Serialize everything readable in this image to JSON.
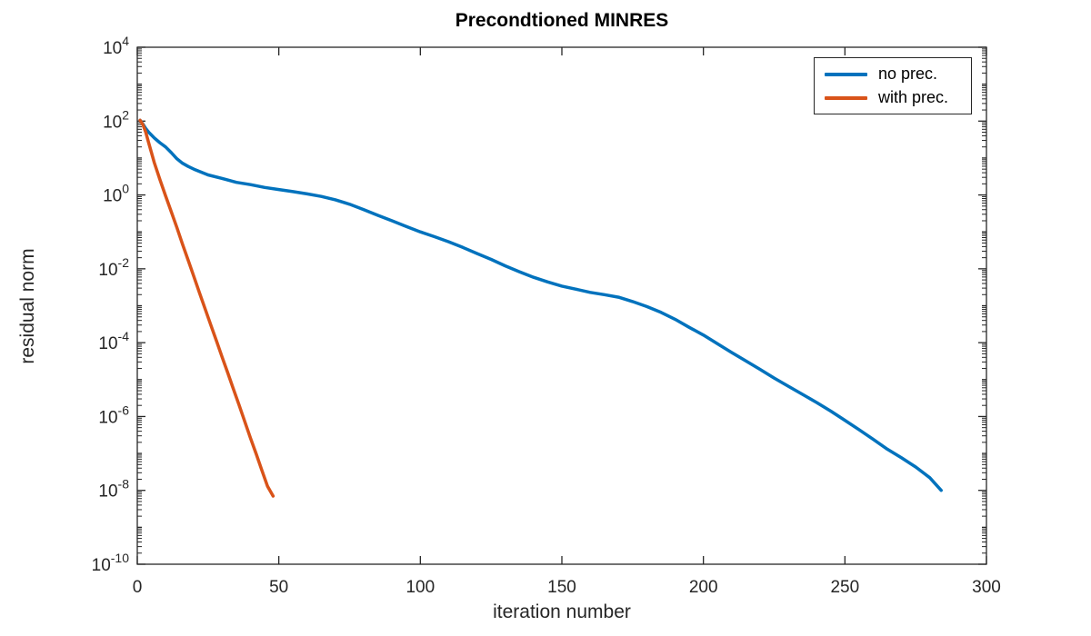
{
  "figure": {
    "background_color": "#ffffff",
    "axes_color": "#262626"
  },
  "chart_data": {
    "type": "line",
    "title": "Precondtioned MINRES",
    "xlabel": "iteration number",
    "ylabel": "residual norm",
    "yscale": "log",
    "xlim": [
      0,
      300
    ],
    "ylim": [
      1e-10,
      10000.0
    ],
    "x_ticks": [
      0,
      50,
      100,
      150,
      200,
      250,
      300
    ],
    "y_tick_exponents": [
      4,
      2,
      0,
      -2,
      -4,
      -6,
      -8,
      -10
    ],
    "grid": false,
    "legend": {
      "position": "northeast",
      "entries": [
        "no prec.",
        "with prec."
      ]
    },
    "series": [
      {
        "name": "no prec.",
        "color": "#0072BD",
        "line_width": 3.5,
        "points": [
          [
            1,
            105
          ],
          [
            2,
            83
          ],
          [
            3,
            63
          ],
          [
            4,
            50
          ],
          [
            5,
            42
          ],
          [
            6,
            35
          ],
          [
            7,
            30
          ],
          [
            8,
            26
          ],
          [
            10,
            20
          ],
          [
            12,
            14
          ],
          [
            14,
            9.5
          ],
          [
            16,
            7.2
          ],
          [
            18,
            5.9
          ],
          [
            20,
            5.0
          ],
          [
            25,
            3.5
          ],
          [
            30,
            2.8
          ],
          [
            35,
            2.2
          ],
          [
            40,
            1.9
          ],
          [
            45,
            1.6
          ],
          [
            50,
            1.4
          ],
          [
            55,
            1.23
          ],
          [
            60,
            1.07
          ],
          [
            65,
            0.91
          ],
          [
            70,
            0.74
          ],
          [
            75,
            0.56
          ],
          [
            80,
            0.4
          ],
          [
            85,
            0.28
          ],
          [
            90,
            0.2
          ],
          [
            95,
            0.14
          ],
          [
            100,
            0.1
          ],
          [
            105,
            0.074
          ],
          [
            110,
            0.054
          ],
          [
            115,
            0.038
          ],
          [
            120,
            0.026
          ],
          [
            125,
            0.018
          ],
          [
            130,
            0.012
          ],
          [
            135,
            0.0083
          ],
          [
            140,
            0.0059
          ],
          [
            145,
            0.0044
          ],
          [
            150,
            0.0034
          ],
          [
            155,
            0.0028
          ],
          [
            160,
            0.0023
          ],
          [
            165,
            0.002
          ],
          [
            170,
            0.0017
          ],
          [
            175,
            0.0013
          ],
          [
            180,
            0.00095
          ],
          [
            185,
            0.00066
          ],
          [
            190,
            0.00043
          ],
          [
            195,
            0.00026
          ],
          [
            200,
            0.00016
          ],
          [
            205,
            9.3e-05
          ],
          [
            210,
            5.4e-05
          ],
          [
            215,
            3.2e-05
          ],
          [
            220,
            1.9e-05
          ],
          [
            225,
            1.1e-05
          ],
          [
            230,
            6.6e-06
          ],
          [
            235,
            4e-06
          ],
          [
            240,
            2.4e-06
          ],
          [
            245,
            1.4e-06
          ],
          [
            250,
            7.9e-07
          ],
          [
            255,
            4.4e-07
          ],
          [
            260,
            2.4e-07
          ],
          [
            265,
            1.3e-07
          ],
          [
            270,
            7.6e-08
          ],
          [
            275,
            4.3e-08
          ],
          [
            280,
            2.2e-08
          ],
          [
            284,
            1e-08
          ]
        ]
      },
      {
        "name": "with prec.",
        "color": "#D95319",
        "line_width": 3.5,
        "points": [
          [
            1,
            105
          ],
          [
            2,
            80
          ],
          [
            3,
            50
          ],
          [
            4,
            26
          ],
          [
            5,
            14
          ],
          [
            6,
            7.5
          ],
          [
            8,
            2.6
          ],
          [
            10,
            0.95
          ],
          [
            12,
            0.35
          ],
          [
            14,
            0.13
          ],
          [
            16,
            0.046
          ],
          [
            18,
            0.017
          ],
          [
            20,
            0.0061
          ],
          [
            22,
            0.0022
          ],
          [
            24,
            0.00081
          ],
          [
            26,
            0.0003
          ],
          [
            28,
            0.00011
          ],
          [
            30,
            4e-05
          ],
          [
            32,
            1.5e-05
          ],
          [
            34,
            5.4e-06
          ],
          [
            36,
            2e-06
          ],
          [
            38,
            7.2e-07
          ],
          [
            40,
            2.6e-07
          ],
          [
            42,
            9.7e-08
          ],
          [
            44,
            3.5e-08
          ],
          [
            46,
            1.3e-08
          ],
          [
            48,
            7e-09
          ]
        ]
      }
    ]
  }
}
